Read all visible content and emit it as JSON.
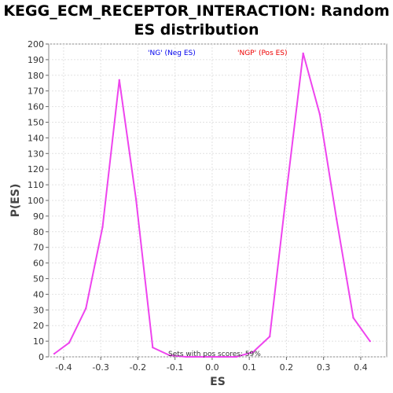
{
  "chart_data": {
    "type": "line",
    "title_line1": "KEGG_ECM_RECEPTOR_INTERACTION: Random",
    "title_line2": "ES distribution",
    "xlabel": "ES",
    "ylabel": "P(ES)",
    "xlim": [
      -0.44,
      0.47
    ],
    "ylim": [
      0,
      200
    ],
    "xticks": [
      -0.4,
      -0.3,
      -0.2,
      -0.1,
      0.0,
      0.1,
      0.2,
      0.3,
      0.4
    ],
    "xtick_labels": [
      "-0.4",
      "-0.3",
      "-0.2",
      "-0.1",
      "0.0",
      "0.1",
      "0.2",
      "0.3",
      "0.4"
    ],
    "yticks": [
      0,
      10,
      20,
      30,
      40,
      50,
      60,
      70,
      80,
      90,
      100,
      110,
      120,
      130,
      140,
      150,
      160,
      170,
      180,
      190,
      200
    ],
    "ytick_labels": [
      "0",
      "10",
      "20",
      "30",
      "40",
      "50",
      "60",
      "70",
      "80",
      "90",
      "100",
      "110",
      "120",
      "130",
      "140",
      "150",
      "160",
      "170",
      "180",
      "190",
      "200"
    ],
    "grid": true,
    "line_color": "#ee44ee",
    "legend": [
      {
        "label": "'NG' (Neg ES)",
        "color": "#0000ee"
      },
      {
        "label": "'NGP' (Pos ES)",
        "color": "#ee0000"
      }
    ],
    "annotation": "Sets with pos scores: 59%",
    "series": [
      {
        "x": [
          -0.425,
          -0.385,
          -0.34,
          -0.295,
          -0.25,
          -0.205,
          -0.16,
          -0.115,
          -0.07,
          -0.025,
          0.02,
          0.065,
          0.11,
          0.155,
          0.2,
          0.245,
          0.29,
          0.335,
          0.38,
          0.425
        ],
        "y": [
          2,
          9,
          31,
          83,
          177,
          101,
          6,
          1,
          0,
          0,
          0,
          0,
          3,
          13,
          105,
          194,
          155,
          88,
          25,
          10
        ]
      }
    ]
  }
}
